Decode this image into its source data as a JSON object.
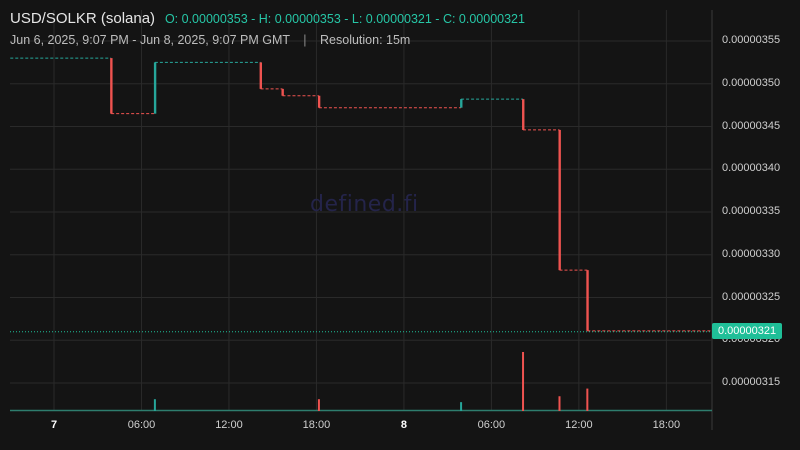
{
  "header": {
    "pair": "USD/SOLKR (solana)",
    "ohlc": "O: 0.00000353 - H: 0.00000353 - L: 0.00000321 - C: 0.00000321",
    "range": "Jun 6, 2025, 9:07 PM - Jun 8, 2025, 9:07 PM GMT",
    "separator": "|",
    "resolution": "Resolution: 15m"
  },
  "watermark": "defined.fi",
  "last_price_label": "0.00000321",
  "colors": {
    "up": "#26a69a",
    "down": "#ef5350",
    "background": "#141414",
    "grid": "#2a2a2a",
    "last_price": "#1fbf98"
  },
  "chart_data": {
    "type": "candlestick",
    "title": "USD/SOLKR (solana)",
    "resolution": "15m",
    "time_range": [
      "2025-06-06T21:07Z",
      "2025-06-08T21:07Z"
    ],
    "y_ticks": [
      "0.00000315",
      "0.00000320",
      "0.00000325",
      "0.00000330",
      "0.00000335",
      "0.00000340",
      "0.00000345",
      "0.00000350",
      "0.00000355"
    ],
    "y_tick_values": [
      3.15e-06,
      3.2e-06,
      3.25e-06,
      3.3e-06,
      3.35e-06,
      3.4e-06,
      3.45e-06,
      3.5e-06,
      3.55e-06
    ],
    "ylim": [
      3.1e-06,
      3.6e-06
    ],
    "x_ticks": [
      {
        "label": "7",
        "t": 3.0,
        "bold": true
      },
      {
        "label": "06:00",
        "t": 9.0,
        "bold": false
      },
      {
        "label": "12:00",
        "t": 15.0,
        "bold": false
      },
      {
        "label": "18:00",
        "t": 21.0,
        "bold": false
      },
      {
        "label": "8",
        "t": 27.0,
        "bold": true
      },
      {
        "label": "06:00",
        "t": 33.0,
        "bold": false
      },
      {
        "label": "12:00",
        "t": 39.0,
        "bold": false
      },
      {
        "label": "18:00",
        "t": 45.0,
        "bold": false
      }
    ],
    "x_unit": "hours since Jun 6, 2025 21:00 GMT",
    "moves": [
      {
        "t": 6.92,
        "open": 3.53e-06,
        "close": 3.465e-06
      },
      {
        "t": 9.92,
        "open": 3.465e-06,
        "close": 3.525e-06
      },
      {
        "t": 17.17,
        "open": 3.525e-06,
        "close": 3.494e-06
      },
      {
        "t": 18.67,
        "open": 3.494e-06,
        "close": 3.486e-06
      },
      {
        "t": 21.17,
        "open": 3.486e-06,
        "close": 3.472e-06
      },
      {
        "t": 30.92,
        "open": 3.472e-06,
        "close": 3.482e-06
      },
      {
        "t": 35.17,
        "open": 3.482e-06,
        "close": 3.446e-06
      },
      {
        "t": 37.67,
        "open": 3.446e-06,
        "close": 3.282e-06
      },
      {
        "t": 39.58,
        "open": 3.282e-06,
        "close": 3.211e-06
      }
    ],
    "start_price": 3.53e-06,
    "last_price": 3.21e-06,
    "volume_spikes": [
      {
        "t": 9.92,
        "rel": 0.2,
        "dir": "up"
      },
      {
        "t": 21.17,
        "rel": 0.2,
        "dir": "down"
      },
      {
        "t": 30.92,
        "rel": 0.15,
        "dir": "up"
      },
      {
        "t": 35.17,
        "rel": 1.0,
        "dir": "down"
      },
      {
        "t": 37.67,
        "rel": 0.25,
        "dir": "down"
      },
      {
        "t": 39.58,
        "rel": 0.38,
        "dir": "down"
      }
    ]
  }
}
